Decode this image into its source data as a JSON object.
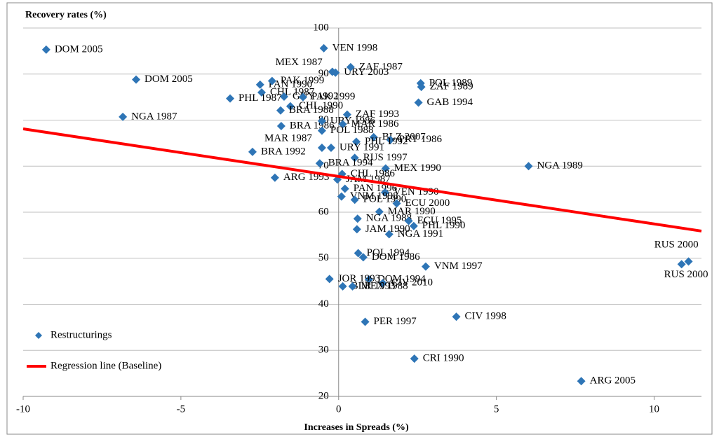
{
  "chart_data": {
    "type": "scatter",
    "title": "Recovery rates (%)",
    "x_label": "Increases in Spreads (%)",
    "xlim": [
      -10,
      11.5
    ],
    "ylim": [
      20,
      100
    ],
    "xticks": [
      -10,
      -5,
      0,
      5,
      10
    ],
    "yticks": [
      20,
      30,
      40,
      50,
      60,
      70,
      80,
      90,
      100
    ],
    "grid": true,
    "legend": "bottom-left",
    "series": [
      {
        "name": "Restructurings",
        "color": "#2e75b6",
        "x": [
          -9.27,
          -0.47,
          -0.2,
          -0.1,
          0.38,
          -6.42,
          2.6,
          2.62,
          -2.49,
          -2.11,
          -2.44,
          -1.73,
          -1.13,
          -1.53,
          -3.44,
          2.53,
          -6.84,
          -1.84,
          -1.82,
          0.27,
          -0.53,
          0.13,
          -0.53,
          1.11,
          1.64,
          0.56,
          -0.53,
          -0.24,
          -2.73,
          0.51,
          -0.6,
          1.49,
          6.02,
          0.11,
          -2.02,
          -0.04,
          0.2,
          1.47,
          0.09,
          0.51,
          1.84,
          1.29,
          0.6,
          2.22,
          2.38,
          0.58,
          1.6,
          0.62,
          0.78,
          2.76,
          10.87,
          11.09,
          0.96,
          -0.29,
          1.4,
          0.13,
          0.44,
          0.84,
          3.73,
          2.4,
          7.69
        ],
        "values": [
          95.3,
          95.6,
          90.5,
          90.3,
          91.5,
          88.8,
          88.0,
          87.2,
          87.7,
          88.5,
          86.0,
          85.1,
          85.0,
          83.0,
          84.7,
          83.8,
          80.7,
          82.1,
          78.7,
          81.2,
          79.8,
          79.1,
          77.7,
          76.3,
          75.7,
          75.3,
          74.0,
          74.0,
          73.1,
          71.8,
          70.6,
          69.5,
          70.0,
          68.3,
          67.5,
          67.1,
          65.1,
          64.3,
          63.4,
          62.7,
          61.9,
          60.1,
          58.6,
          58.1,
          57.0,
          56.3,
          55.2,
          51.1,
          50.2,
          48.2,
          48.7,
          49.3,
          45.4,
          45.5,
          44.6,
          43.9,
          43.9,
          36.2,
          37.3,
          28.2,
          23.3
        ],
        "labels": [
          "DOM 2005",
          "VEN 1998",
          "MEX 1987",
          "URY 2003",
          "ZAF 1987",
          "DOM 2005",
          "POL 1989",
          "ZAF 1989",
          "PAN 1990",
          "PAK 1999",
          "CHL 1987",
          "GUY 1992",
          "PAK 1999",
          "CHL 1990",
          "PHL 1987",
          "GAB 1994",
          "NGA 1987",
          "BRA 1988",
          "BRA 1986",
          "ZAF 1993",
          "URY 1986",
          "MAR 1986",
          "POL 1988",
          "BLZ 2007",
          "PRY 1986",
          "PHL 1992",
          "MAR 1987",
          "URY 1991",
          "BRA 1992",
          "RUS 1997",
          "BRA 1994",
          "MEX 1990",
          "NGA 1989",
          "CHL 1986",
          "ARG 1993",
          "JAM 1987",
          "PAN 1996",
          "VEN 1990",
          "VNM 1998",
          "POL 1990",
          "ECU 2000",
          "MAR 1990",
          "NGA 1988",
          "ECU 1995",
          "PHL 1990",
          "JAM 1990",
          "NGA 1991",
          "POL 1994",
          "DOM 1986",
          "VNM 1997",
          "RUS 2000",
          "RUS 2000",
          "DOM 1994",
          "JOR 1993",
          "CIV 2010",
          "BLR 1993",
          "MEX 1988",
          "PER 1997",
          "CIV 1998",
          "CRI 1990",
          "ARG 2005"
        ]
      },
      {
        "name": "Regression line (Baseline)",
        "color": "#ff0000",
        "type": "line",
        "x": [
          -10,
          11.5
        ],
        "values": [
          78.1,
          55.9
        ]
      }
    ]
  }
}
